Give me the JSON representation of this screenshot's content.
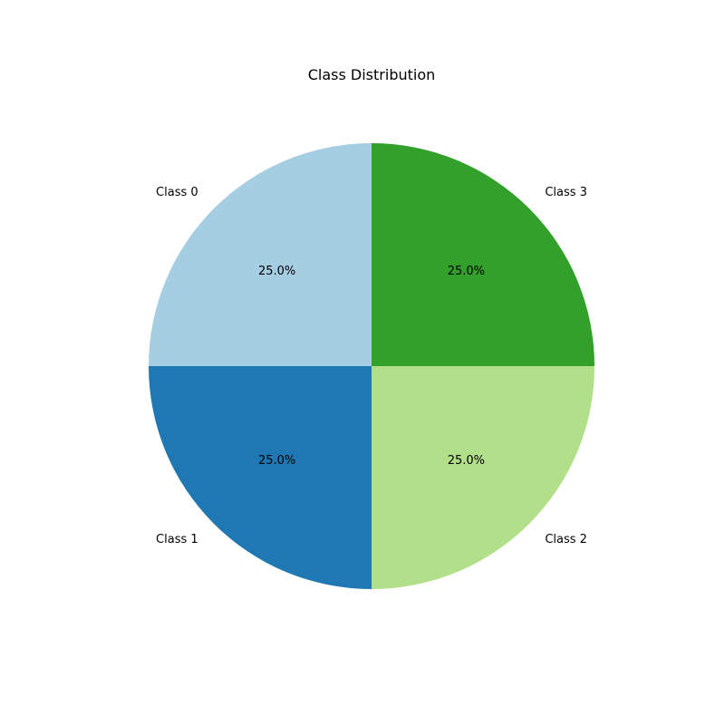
{
  "chart_data": {
    "type": "pie",
    "title": "Class Distribution",
    "categories": [
      "Class 0",
      "Class 1",
      "Class 2",
      "Class 3"
    ],
    "values": [
      25.0,
      25.0,
      25.0,
      25.0
    ],
    "value_labels": [
      "25.0%",
      "25.0%",
      "25.0%",
      "25.0%"
    ],
    "colors": [
      "#a6cee3",
      "#1f78b4",
      "#b2df8a",
      "#33a02c"
    ],
    "start_angle_deg": 90,
    "direction": "counterclockwise"
  }
}
